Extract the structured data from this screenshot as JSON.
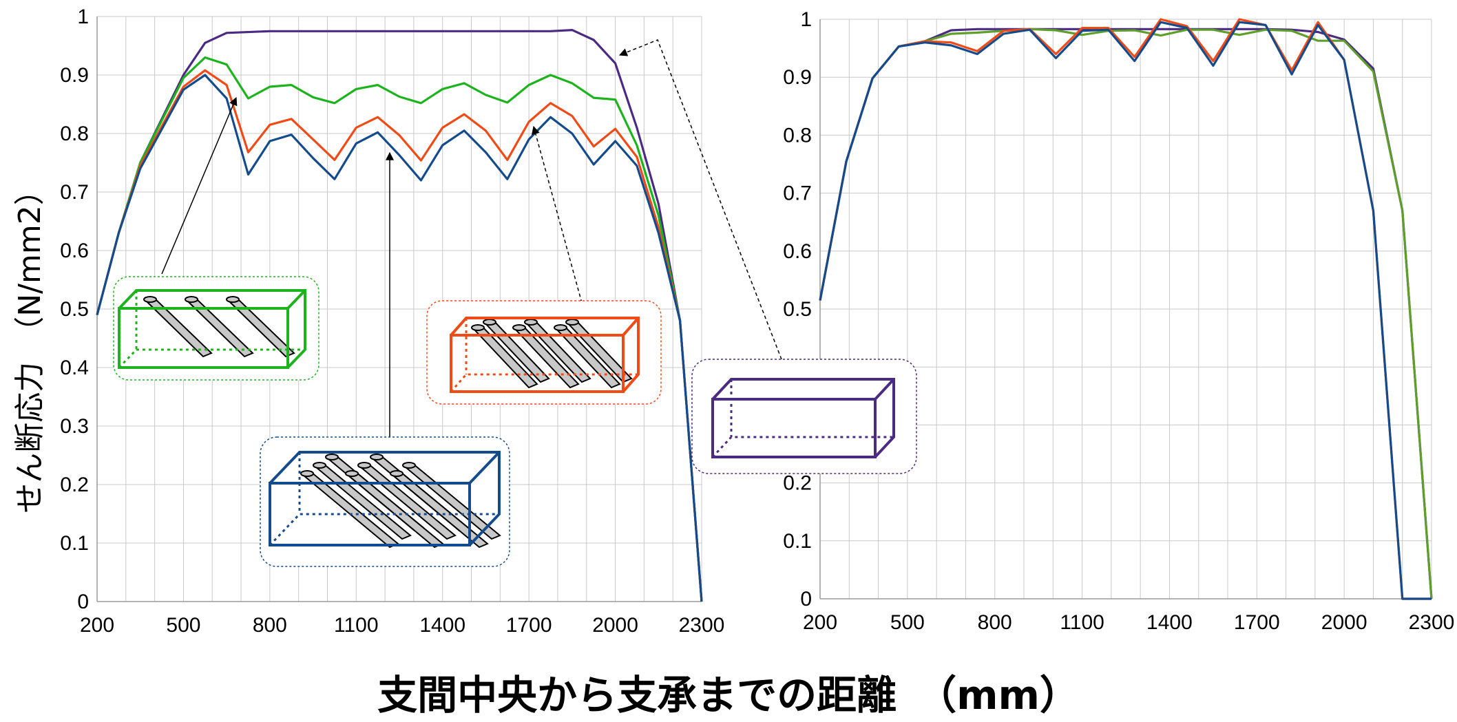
{
  "ylabel": "せん断応力　（N/mm2）",
  "xlabel": "支間中央から支承までの距離　（mm）",
  "colors": {
    "purple": "#4B2A82",
    "green": "#1DB31D",
    "orange": "#F04A16",
    "blue": "#134B8C",
    "olive": "#5E9E2A",
    "grid": "#c8c8c8"
  },
  "chart_data": [
    {
      "type": "line",
      "xlim": [
        200,
        2300
      ],
      "ylim": [
        0,
        1
      ],
      "grid": true,
      "x_ticks": [
        "200",
        "500",
        "800",
        "1100",
        "1400",
        "1700",
        "2000",
        "2300"
      ],
      "y_ticks": [
        "0",
        "0.1",
        "0.2",
        "0.3",
        "0.4",
        "0.5",
        "0.6",
        "0.7",
        "0.8",
        "0.9",
        "1"
      ],
      "series": [
        {
          "color": "#4B2A82",
          "x": [
            200,
            275,
            350,
            500,
            575,
            650,
            800,
            1100,
            1400,
            1700,
            1775,
            1850,
            1925,
            2000,
            2075,
            2150,
            2225,
            2300
          ],
          "y": [
            0.49,
            0.63,
            0.75,
            0.9,
            0.955,
            0.972,
            0.975,
            0.975,
            0.975,
            0.975,
            0.975,
            0.977,
            0.96,
            0.92,
            0.81,
            0.68,
            0.48,
            0.0
          ]
        },
        {
          "color": "#1DB31D",
          "x": [
            200,
            275,
            350,
            500,
            575,
            650,
            725,
            800,
            875,
            950,
            1025,
            1100,
            1175,
            1250,
            1325,
            1400,
            1475,
            1550,
            1625,
            1700,
            1775,
            1850,
            1925,
            2000,
            2075,
            2150,
            2225,
            2300
          ],
          "y": [
            0.49,
            0.63,
            0.75,
            0.895,
            0.93,
            0.918,
            0.86,
            0.88,
            0.883,
            0.862,
            0.852,
            0.876,
            0.883,
            0.863,
            0.852,
            0.876,
            0.886,
            0.866,
            0.853,
            0.883,
            0.9,
            0.886,
            0.861,
            0.858,
            0.78,
            0.66,
            0.48,
            0.0
          ]
        },
        {
          "color": "#F04A16",
          "x": [
            200,
            275,
            350,
            500,
            575,
            650,
            725,
            800,
            875,
            950,
            1025,
            1100,
            1175,
            1250,
            1325,
            1400,
            1475,
            1550,
            1625,
            1700,
            1775,
            1850,
            1925,
            2000,
            2075,
            2150,
            2225,
            2300
          ],
          "y": [
            0.49,
            0.63,
            0.745,
            0.88,
            0.908,
            0.883,
            0.768,
            0.815,
            0.825,
            0.79,
            0.755,
            0.81,
            0.828,
            0.797,
            0.754,
            0.81,
            0.833,
            0.805,
            0.755,
            0.82,
            0.852,
            0.83,
            0.778,
            0.808,
            0.76,
            0.64,
            0.48,
            0.0
          ]
        },
        {
          "color": "#134B8C",
          "x": [
            200,
            275,
            350,
            500,
            575,
            650,
            725,
            800,
            875,
            950,
            1025,
            1100,
            1175,
            1250,
            1325,
            1400,
            1475,
            1550,
            1625,
            1700,
            1775,
            1850,
            1925,
            2000,
            2075,
            2150,
            2225,
            2300
          ],
          "y": [
            0.49,
            0.63,
            0.74,
            0.875,
            0.9,
            0.86,
            0.73,
            0.787,
            0.798,
            0.758,
            0.722,
            0.783,
            0.802,
            0.763,
            0.72,
            0.78,
            0.805,
            0.768,
            0.722,
            0.79,
            0.828,
            0.8,
            0.747,
            0.787,
            0.745,
            0.63,
            0.48,
            0.0
          ]
        }
      ]
    },
    {
      "type": "line",
      "xlim": [
        200,
        2300
      ],
      "ylim": [
        0,
        1
      ],
      "grid": true,
      "x_ticks": [
        "200",
        "500",
        "800",
        "1100",
        "1400",
        "1700",
        "2000",
        "2300"
      ],
      "y_ticks": [
        "0",
        "0.1",
        "0.2",
        "0.3",
        "0.4",
        "0.5",
        "0.6",
        "0.7",
        "0.8",
        "0.9",
        "1"
      ],
      "series": [
        {
          "color": "#4B2A82",
          "x": [
            200,
            290,
            380,
            470,
            560,
            650,
            740,
            830,
            920,
            1010,
            1100,
            1190,
            1280,
            1370,
            1460,
            1550,
            1640,
            1730,
            1820,
            1910,
            2000,
            2100,
            2200,
            2300
          ],
          "y": [
            0.515,
            0.755,
            0.898,
            0.953,
            0.962,
            0.981,
            0.983,
            0.983,
            0.983,
            0.983,
            0.983,
            0.983,
            0.983,
            0.983,
            0.983,
            0.983,
            0.983,
            0.983,
            0.982,
            0.978,
            0.965,
            0.915,
            0.67,
            0.0
          ]
        },
        {
          "color": "#5E9E2A",
          "x": [
            200,
            290,
            380,
            470,
            560,
            650,
            740,
            830,
            920,
            1010,
            1100,
            1190,
            1280,
            1370,
            1460,
            1550,
            1640,
            1730,
            1820,
            1910,
            2000,
            2100,
            2200,
            2300
          ],
          "y": [
            0.515,
            0.755,
            0.898,
            0.953,
            0.962,
            0.975,
            0.977,
            0.98,
            0.983,
            0.981,
            0.973,
            0.98,
            0.981,
            0.972,
            0.982,
            0.982,
            0.973,
            0.982,
            0.98,
            0.963,
            0.963,
            0.91,
            0.67,
            0.0
          ]
        },
        {
          "color": "#F04A16",
          "x": [
            200,
            290,
            380,
            470,
            560,
            650,
            740,
            830,
            920,
            1010,
            1100,
            1190,
            1280,
            1370,
            1460,
            1550,
            1640,
            1730,
            1820,
            1910,
            2000,
            2100,
            2200,
            2300
          ],
          "y": [
            0.515,
            0.755,
            0.898,
            0.953,
            0.962,
            0.96,
            0.945,
            0.98,
            0.983,
            0.94,
            0.985,
            0.985,
            0.935,
            1.0,
            0.988,
            0.928,
            1.0,
            0.99,
            0.912,
            0.995,
            0.93,
            0.67,
            0.0,
            0.0
          ]
        },
        {
          "color": "#134B8C",
          "x": [
            200,
            290,
            380,
            470,
            560,
            650,
            740,
            830,
            920,
            1010,
            1100,
            1190,
            1280,
            1370,
            1460,
            1550,
            1640,
            1730,
            1820,
            1910,
            2000,
            2100,
            2200,
            2300
          ],
          "y": [
            0.515,
            0.755,
            0.898,
            0.953,
            0.96,
            0.955,
            0.94,
            0.975,
            0.982,
            0.933,
            0.98,
            0.982,
            0.928,
            0.995,
            0.985,
            0.92,
            0.995,
            0.99,
            0.905,
            0.99,
            0.93,
            0.67,
            0.0,
            0.0
          ]
        }
      ]
    }
  ]
}
